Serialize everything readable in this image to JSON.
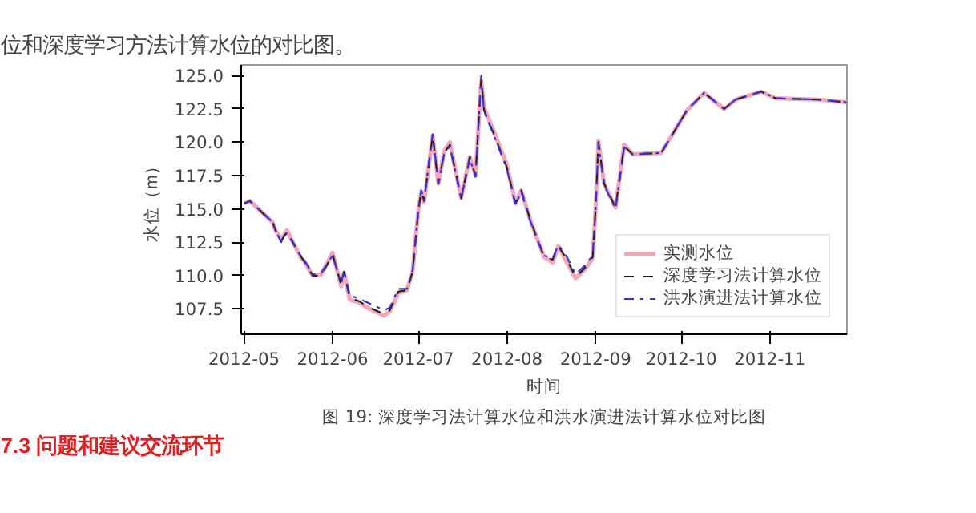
{
  "chart_data": {
    "type": "line",
    "title": "图 19: 深度学习法计算水位和洪水演进法计算水位对比图",
    "xlabel": "时间",
    "ylabel": "水位（m）",
    "annotations": [
      "位和深度学习方法计算水位的对比图。",
      "7.3 问题和建议交流环节"
    ],
    "x": [
      "2012-05-01",
      "2012-05-03",
      "2012-05-11",
      "2012-05-12",
      "2012-05-14",
      "2012-05-16",
      "2012-05-21",
      "2012-05-22",
      "2012-05-25",
      "2012-05-28",
      "2012-06-01",
      "2012-06-04",
      "2012-06-05",
      "2012-06-07",
      "2012-06-10",
      "2012-06-14",
      "2012-06-19",
      "2012-06-21",
      "2012-06-24",
      "2012-06-27",
      "2012-06-29",
      "2012-07-01",
      "2012-07-02",
      "2012-07-03",
      "2012-07-06",
      "2012-07-08",
      "2012-07-10",
      "2012-07-12",
      "2012-07-16",
      "2012-07-19",
      "2012-07-21",
      "2012-07-23",
      "2012-07-24",
      "2012-07-28",
      "2012-08-01",
      "2012-08-04",
      "2012-08-06",
      "2012-08-09",
      "2012-08-11",
      "2012-08-14",
      "2012-08-17",
      "2012-08-19",
      "2012-08-22",
      "2012-08-25",
      "2012-08-28",
      "2012-08-31",
      "2012-09-01",
      "2012-09-02",
      "2012-09-04",
      "2012-09-08",
      "2012-09-11",
      "2012-09-14",
      "2012-09-24",
      "2012-10-03",
      "2012-10-09",
      "2012-10-16",
      "2012-10-20",
      "2012-10-29",
      "2012-11-03",
      "2012-11-18",
      "2012-11-28"
    ],
    "series": [
      {
        "name": "实测水位",
        "color": "#f4a6b8",
        "line_style": "solid",
        "values": [
          115.4,
          115.6,
          114.0,
          113.4,
          112.7,
          113.4,
          111.3,
          111.1,
          110.0,
          110.1,
          111.7,
          109.2,
          110.2,
          108.2,
          108.0,
          107.5,
          107.0,
          107.3,
          108.7,
          108.9,
          110.3,
          114.9,
          116.3,
          115.5,
          120.5,
          116.9,
          119.3,
          120.0,
          115.8,
          118.9,
          117.5,
          124.6,
          122.6,
          120.5,
          118.3,
          115.4,
          116.4,
          114.3,
          113.1,
          111.4,
          111.0,
          112.2,
          111.0,
          109.8,
          110.4,
          111.3,
          114.9,
          120.1,
          116.9,
          115.1,
          119.8,
          119.1,
          119.2,
          122.4,
          123.7,
          122.5,
          123.2,
          123.8,
          123.3,
          123.2,
          123.0
        ]
      },
      {
        "name": "深度学习法计算水位",
        "color": "#222222",
        "line_style": "dashed",
        "values": [
          115.4,
          115.6,
          114.0,
          113.4,
          112.6,
          113.3,
          111.4,
          111.1,
          110.0,
          110.0,
          111.6,
          109.3,
          110.3,
          108.3,
          108.1,
          107.6,
          107.1,
          107.4,
          108.8,
          108.9,
          110.3,
          114.9,
          116.3,
          115.6,
          120.5,
          116.9,
          119.2,
          119.8,
          115.8,
          118.9,
          117.5,
          124.8,
          122.4,
          120.3,
          118.1,
          115.4,
          116.4,
          114.3,
          113.1,
          111.4,
          111.2,
          112.2,
          111.2,
          109.9,
          110.5,
          111.4,
          114.9,
          120.0,
          116.9,
          115.1,
          119.7,
          119.1,
          119.2,
          122.4,
          123.7,
          122.5,
          123.2,
          123.8,
          123.3,
          123.2,
          123.0
        ]
      },
      {
        "name": "洪水演进法计算水位",
        "color": "#3333dd",
        "line_style": "dashdot",
        "values": [
          115.4,
          115.6,
          114.0,
          113.4,
          112.5,
          113.2,
          111.4,
          111.2,
          110.1,
          110.2,
          111.5,
          109.4,
          110.4,
          108.5,
          108.3,
          107.9,
          107.4,
          107.6,
          109.0,
          109.0,
          110.4,
          114.9,
          116.4,
          115.6,
          120.6,
          116.9,
          119.1,
          119.7,
          115.8,
          118.8,
          117.4,
          125.0,
          122.3,
          120.2,
          118.0,
          115.3,
          116.3,
          114.2,
          113.0,
          111.5,
          111.3,
          112.3,
          111.4,
          110.1,
          110.7,
          111.5,
          114.9,
          119.9,
          116.8,
          115.0,
          119.6,
          119.1,
          119.2,
          122.4,
          123.7,
          122.5,
          123.2,
          123.8,
          123.3,
          123.2,
          123.0
        ]
      }
    ],
    "xlim": [
      "2012-04-30",
      "2012-11-28"
    ],
    "xticks": [
      {
        "value": "2012-05-01",
        "label": "2012-05"
      },
      {
        "value": "2012-06-01",
        "label": "2012-06"
      },
      {
        "value": "2012-07-01",
        "label": "2012-07"
      },
      {
        "value": "2012-08-01",
        "label": "2012-08"
      },
      {
        "value": "2012-09-01",
        "label": "2012-09"
      },
      {
        "value": "2012-10-01",
        "label": "2012-10"
      },
      {
        "value": "2012-11-01",
        "label": "2012-11"
      }
    ],
    "ylim": [
      105.6,
      125.8
    ],
    "yticks": [
      107.5,
      {
        "value": 110,
        "label": "110.0"
      },
      112.5,
      {
        "value": 115,
        "label": "115.0"
      },
      117.5,
      {
        "value": 120,
        "label": "120.0"
      },
      122.5,
      {
        "value": 125,
        "label": "125.0"
      }
    ],
    "grid": false,
    "legend": "bottom right"
  }
}
